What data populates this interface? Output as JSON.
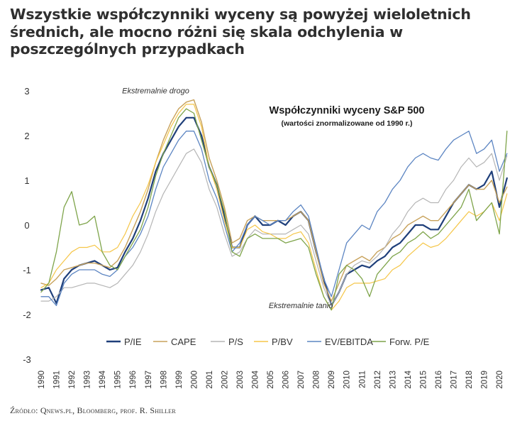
{
  "headline": "Wszystkie współczynniki wyceny są powyżej wieloletnich średnich, ale mocno różni się skala odchylenia w poszczególnych przypadkach",
  "source": "Źródło: Qnews.pl, Bloomberg, prof. R. Shiller",
  "chart_data": {
    "type": "line",
    "title": "Współczynniki wyceny S&P 500",
    "subtitle": "(wartości znormalizowane od 1990 r.)",
    "xlabel": "",
    "ylabel": "",
    "xlim": [
      1990,
      2020.6
    ],
    "ylim": [
      -3,
      3
    ],
    "grid": false,
    "legend_position": "bottom",
    "x_ticks": [
      "1990",
      "1991",
      "1992",
      "1993",
      "1994",
      "1995",
      "1996",
      "1997",
      "1998",
      "1999",
      "2000",
      "2001",
      "2002",
      "2003",
      "2004",
      "2005",
      "2006",
      "2007",
      "2008",
      "2009",
      "2010",
      "2011",
      "2012",
      "2013",
      "2014",
      "2015",
      "2016",
      "2017",
      "2018",
      "2019",
      "2020"
    ],
    "y_ticks": [
      3,
      2,
      1,
      0,
      -1,
      -2,
      -3
    ],
    "annotations": [
      {
        "text": "Ekstremalnie drogo",
        "x": 1999.7,
        "y": 2.85
      },
      {
        "text": "Ekstremalnie tanio",
        "x": 2009.1,
        "y": -1.95
      }
    ],
    "x": [
      1990,
      1990.5,
      1991,
      1991.5,
      1992,
      1992.5,
      1993,
      1993.5,
      1994,
      1994.5,
      1995,
      1995.5,
      1996,
      1996.5,
      1997,
      1997.5,
      1998,
      1998.5,
      1999,
      1999.5,
      2000,
      2000.5,
      2001,
      2001.5,
      2002,
      2002.5,
      2003,
      2003.5,
      2004,
      2004.5,
      2005,
      2005.5,
      2006,
      2006.5,
      2007,
      2007.5,
      2008,
      2008.5,
      2009,
      2009.5,
      2010,
      2010.5,
      2011,
      2011.5,
      2012,
      2012.5,
      2013,
      2013.5,
      2014,
      2014.5,
      2015,
      2015.5,
      2016,
      2016.5,
      2017,
      2017.5,
      2018,
      2018.5,
      2019,
      2019.5,
      2020,
      2020.5
    ],
    "series": [
      {
        "name": "P/IE",
        "color": "#1f3f7a",
        "width": 2.2,
        "values": [
          -1.45,
          -1.4,
          -1.75,
          -1.2,
          -1.0,
          -0.9,
          -0.85,
          -0.8,
          -0.9,
          -1.0,
          -0.95,
          -0.6,
          -0.3,
          0.1,
          0.6,
          1.2,
          1.6,
          1.9,
          2.2,
          2.4,
          2.4,
          2.0,
          1.3,
          0.9,
          0.2,
          -0.5,
          -0.5,
          0.0,
          0.2,
          0.0,
          0.0,
          0.1,
          0.0,
          0.2,
          0.3,
          0.1,
          -0.6,
          -1.2,
          -1.8,
          -1.5,
          -1.1,
          -1.0,
          -0.9,
          -0.95,
          -0.8,
          -0.7,
          -0.5,
          -0.4,
          -0.2,
          0.0,
          0.0,
          -0.1,
          -0.1,
          0.2,
          0.5,
          0.7,
          0.9,
          0.8,
          0.9,
          1.2,
          0.4,
          1.05
        ]
      },
      {
        "name": "CAPE",
        "color": "#c8a25b",
        "width": 1.4,
        "values": [
          -1.3,
          -1.35,
          -1.2,
          -1.0,
          -0.95,
          -0.9,
          -0.85,
          -0.85,
          -0.9,
          -0.95,
          -0.8,
          -0.5,
          -0.1,
          0.3,
          0.8,
          1.4,
          1.9,
          2.3,
          2.6,
          2.75,
          2.8,
          2.3,
          1.5,
          1.0,
          0.4,
          -0.4,
          -0.3,
          0.1,
          0.2,
          0.1,
          0.1,
          0.1,
          0.1,
          0.2,
          0.3,
          0.1,
          -0.6,
          -1.3,
          -1.7,
          -1.3,
          -0.9,
          -0.8,
          -0.7,
          -0.8,
          -0.6,
          -0.5,
          -0.3,
          -0.2,
          0.0,
          0.1,
          0.2,
          0.1,
          0.1,
          0.3,
          0.5,
          0.7,
          0.9,
          0.8,
          0.8,
          1.0,
          0.5,
          0.85
        ]
      },
      {
        "name": "P/S",
        "color": "#b5b5b5",
        "width": 1.2,
        "values": [
          -1.7,
          -1.7,
          -1.6,
          -1.4,
          -1.4,
          -1.35,
          -1.3,
          -1.3,
          -1.35,
          -1.4,
          -1.3,
          -1.1,
          -0.9,
          -0.6,
          -0.2,
          0.3,
          0.7,
          1.0,
          1.3,
          1.6,
          1.7,
          1.4,
          0.8,
          0.4,
          -0.2,
          -0.7,
          -0.6,
          -0.3,
          -0.1,
          -0.2,
          -0.2,
          -0.2,
          -0.2,
          -0.1,
          0.0,
          -0.2,
          -0.8,
          -1.4,
          -1.8,
          -1.5,
          -1.1,
          -0.9,
          -0.8,
          -0.85,
          -0.7,
          -0.5,
          -0.2,
          0.0,
          0.3,
          0.5,
          0.6,
          0.5,
          0.5,
          0.8,
          1.0,
          1.3,
          1.5,
          1.3,
          1.4,
          1.6,
          1.0,
          1.55
        ]
      },
      {
        "name": "P/BV",
        "color": "#f5c648",
        "width": 1.2,
        "values": [
          -1.4,
          -1.3,
          -1.0,
          -0.8,
          -0.6,
          -0.5,
          -0.5,
          -0.45,
          -0.6,
          -0.6,
          -0.5,
          -0.2,
          0.2,
          0.5,
          0.9,
          1.4,
          1.8,
          2.2,
          2.5,
          2.7,
          2.7,
          2.2,
          1.3,
          0.8,
          0.1,
          -0.5,
          -0.5,
          -0.1,
          0.0,
          -0.15,
          -0.2,
          -0.3,
          -0.3,
          -0.2,
          -0.15,
          -0.4,
          -1.0,
          -1.6,
          -1.9,
          -1.7,
          -1.4,
          -1.3,
          -1.3,
          -1.3,
          -1.25,
          -1.2,
          -1.0,
          -0.9,
          -0.7,
          -0.55,
          -0.4,
          -0.5,
          -0.45,
          -0.3,
          -0.1,
          0.1,
          0.3,
          0.2,
          0.3,
          0.5,
          0.1,
          0.7
        ]
      },
      {
        "name": "EV/EBITDA",
        "color": "#5c85c2",
        "width": 1.3,
        "values": [
          -1.6,
          -1.6,
          -1.8,
          -1.3,
          -1.1,
          -1.0,
          -1.0,
          -1.0,
          -1.1,
          -1.15,
          -1.0,
          -0.7,
          -0.5,
          -0.2,
          0.2,
          0.8,
          1.3,
          1.6,
          1.9,
          2.1,
          2.1,
          1.7,
          1.0,
          0.6,
          0.0,
          -0.6,
          -0.4,
          0.0,
          0.2,
          0.1,
          0.0,
          0.1,
          0.1,
          0.3,
          0.45,
          0.2,
          -0.5,
          -1.2,
          -1.6,
          -1.0,
          -0.4,
          -0.2,
          0.0,
          -0.1,
          0.3,
          0.5,
          0.8,
          1.0,
          1.3,
          1.5,
          1.6,
          1.5,
          1.45,
          1.7,
          1.9,
          2.0,
          2.1,
          1.6,
          1.7,
          1.9,
          1.2,
          1.6
        ]
      },
      {
        "name": "Forw. P/E",
        "color": "#7ea44a",
        "width": 1.3,
        "values": [
          -1.5,
          -1.3,
          -0.6,
          0.4,
          0.75,
          0.0,
          0.05,
          0.2,
          -0.6,
          -0.9,
          -1.0,
          -0.7,
          -0.4,
          -0.1,
          0.4,
          1.1,
          1.6,
          2.0,
          2.4,
          2.6,
          2.5,
          1.9,
          1.3,
          0.9,
          0.3,
          -0.6,
          -0.7,
          -0.3,
          -0.2,
          -0.3,
          -0.3,
          -0.3,
          -0.4,
          -0.35,
          -0.3,
          -0.5,
          -1.1,
          -1.6,
          -1.9,
          -1.1,
          -0.9,
          -1.0,
          -1.2,
          -1.6,
          -1.1,
          -0.9,
          -0.7,
          -0.6,
          -0.4,
          -0.3,
          -0.15,
          -0.3,
          -0.2,
          0.0,
          0.2,
          0.4,
          0.8,
          0.1,
          0.3,
          0.5,
          -0.2,
          2.1
        ]
      }
    ]
  }
}
